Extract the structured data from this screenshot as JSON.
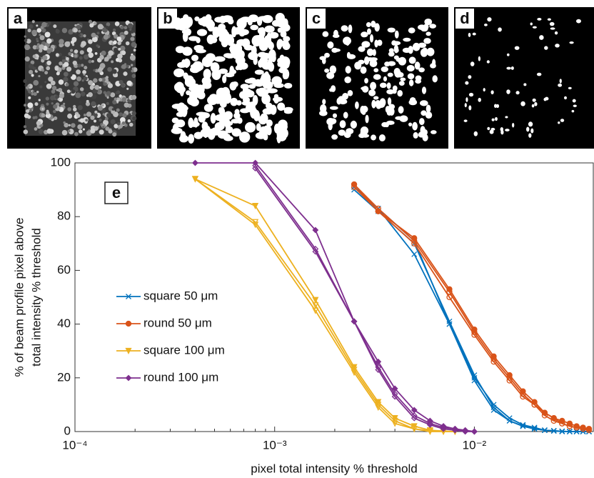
{
  "panels": [
    "a",
    "b",
    "c",
    "d"
  ],
  "chart_data": {
    "type": "line",
    "panel_label": "e",
    "x_label": "pixel total intensity % threshold",
    "y_label": [
      "% of beam profile pixel above",
      "total intensity % threshold"
    ],
    "xscale": "log",
    "xlim": [
      0.0001,
      0.0394
    ],
    "ylim": [
      0,
      100
    ],
    "xticks": [
      {
        "value": 0.0001,
        "label": "10⁻⁴"
      },
      {
        "value": 0.001,
        "label": "10⁻³"
      },
      {
        "value": 0.01,
        "label": "10⁻²"
      }
    ],
    "yticks": [
      0,
      20,
      40,
      60,
      80,
      100
    ],
    "series": [
      {
        "name": "square 50 μm",
        "color": "#0072bd",
        "marker": "x",
        "x": [
          0.0025,
          0.0033,
          0.005,
          0.0075,
          0.01,
          0.0125,
          0.015,
          0.0175,
          0.02,
          0.0225,
          0.025,
          0.0275,
          0.03,
          0.0325,
          0.035,
          0.0375
        ],
        "runs": [
          [
            91,
            83,
            66,
            40,
            20,
            10,
            5,
            2.5,
            1.5,
            0.5,
            0.3,
            0.1,
            0,
            0,
            0,
            0
          ],
          [
            90,
            82,
            70,
            41,
            21,
            9,
            4,
            2,
            1,
            0.5,
            0.3,
            0.1,
            0,
            0,
            0,
            0
          ],
          [
            91,
            83,
            71,
            40,
            19,
            8,
            4,
            2,
            1,
            0.5,
            0.2,
            0,
            0,
            0,
            0,
            0
          ]
        ]
      },
      {
        "name": "round 50 μm",
        "color": "#d95319",
        "marker": "circle",
        "x": [
          0.0025,
          0.0033,
          0.005,
          0.0075,
          0.01,
          0.0125,
          0.015,
          0.0175,
          0.02,
          0.0225,
          0.025,
          0.0275,
          0.03,
          0.0325,
          0.035,
          0.0375
        ],
        "runs": [
          [
            92,
            82,
            72,
            53,
            38,
            28,
            21,
            15,
            11,
            7,
            5,
            4,
            3,
            2,
            1.5,
            1
          ],
          [
            92,
            83,
            71,
            52,
            37,
            27,
            20,
            14,
            10,
            7,
            5,
            3,
            2,
            1.5,
            1,
            1
          ],
          [
            91,
            82,
            70,
            50,
            36,
            26,
            19,
            13,
            10,
            6,
            4,
            3,
            2,
            1.5,
            1,
            0.5
          ]
        ]
      },
      {
        "name": "square 100 μm",
        "color": "#edb120",
        "marker": "triangle",
        "x": [
          0.0004,
          0.0008,
          0.0016,
          0.0025,
          0.0033,
          0.004,
          0.005,
          0.006,
          0.007,
          0.008
        ],
        "runs": [
          [
            94,
            84,
            49,
            24,
            11,
            5,
            2,
            0.5,
            0.2,
            0
          ],
          [
            94,
            78,
            47,
            23,
            10,
            4,
            1,
            0.3,
            0,
            0
          ],
          [
            94,
            77,
            45,
            22,
            9,
            3,
            1,
            0,
            0,
            0
          ]
        ]
      },
      {
        "name": "round 100 μm",
        "color": "#7e2f8e",
        "marker": "diamond",
        "x": [
          0.0004,
          0.0008,
          0.0016,
          0.0025,
          0.0033,
          0.004,
          0.005,
          0.006,
          0.007,
          0.008,
          0.009,
          0.01
        ],
        "runs": [
          [
            100,
            100,
            75,
            41,
            26,
            16,
            8,
            4,
            2,
            1,
            0.5,
            0
          ],
          [
            null,
            99,
            68,
            41,
            24,
            14,
            6,
            3,
            1.5,
            1,
            0.3,
            0
          ],
          [
            null,
            98,
            67,
            41,
            23,
            13,
            5,
            2.5,
            1,
            0.5,
            0,
            0
          ]
        ]
      }
    ]
  }
}
